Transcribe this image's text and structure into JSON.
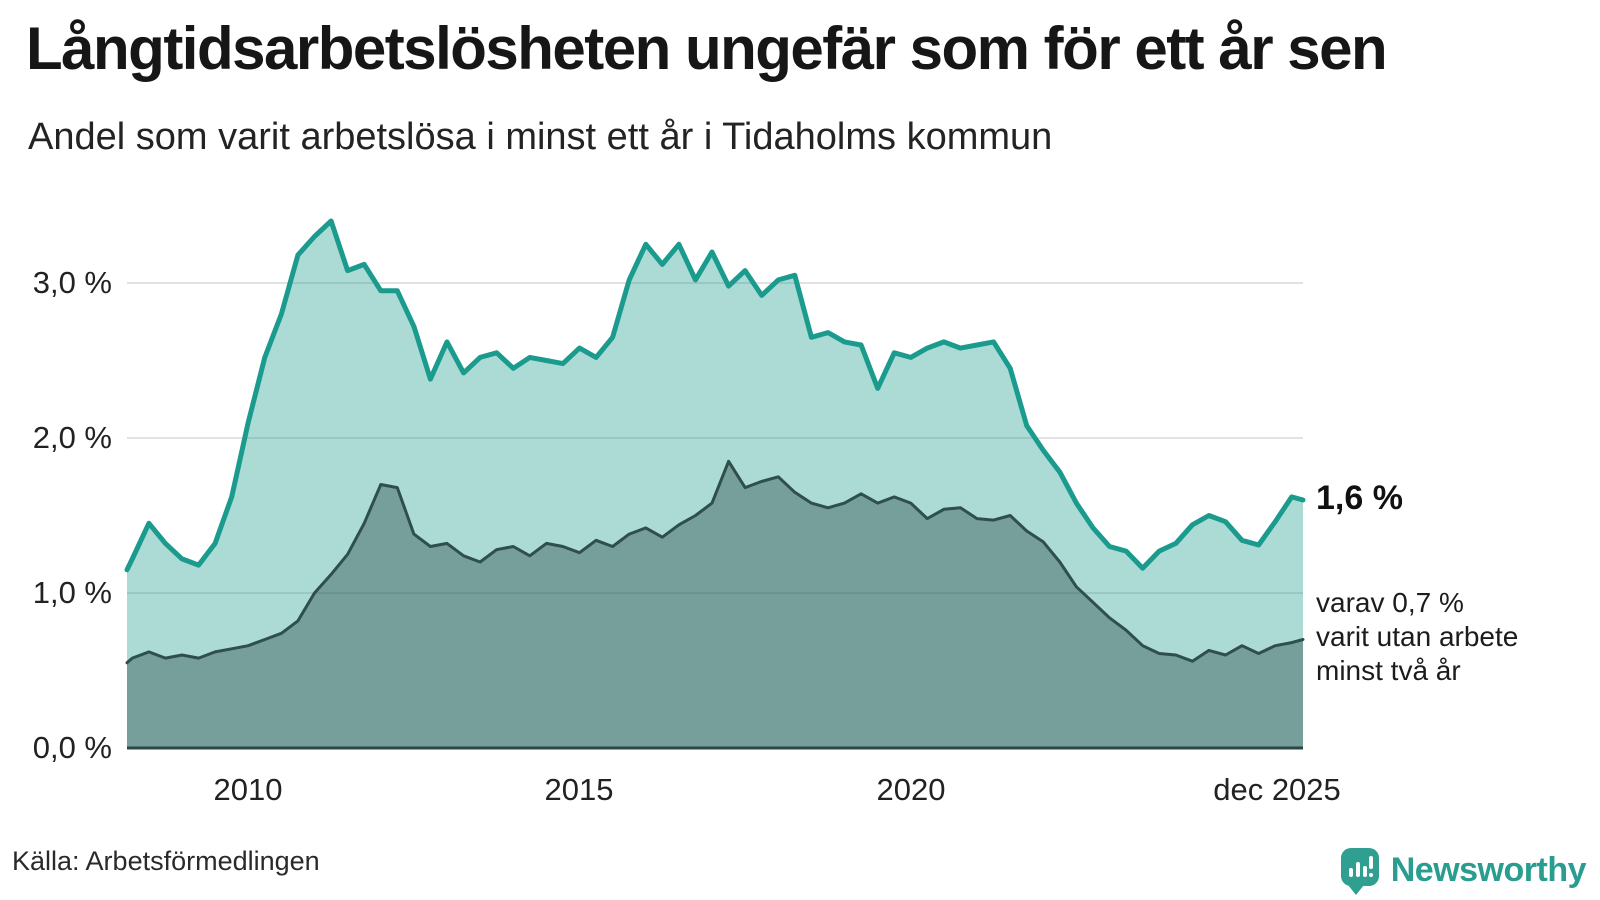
{
  "header": {
    "title": "Långtidsarbetslösheten ungefär som för ett år sen",
    "subtitle": "Andel som varit arbetslösa i minst ett år i Tidaholms kommun"
  },
  "chart_data": {
    "type": "area",
    "title": "Långtidsarbetslösheten ungefär som för ett år sen",
    "subtitle": "Andel som varit arbetslösa i minst ett år i Tidaholms kommun",
    "unit": "%",
    "grid": true,
    "legend_position": "none",
    "ylim": [
      0,
      3.45
    ],
    "xlim": [
      2008.17,
      2025.92
    ],
    "yticks": [
      {
        "value": 3.0,
        "label": "3,0 %"
      },
      {
        "value": 2.0,
        "label": "2,0 %"
      },
      {
        "value": 1.0,
        "label": "1,0 %"
      },
      {
        "value": 0.0,
        "label": "0,0 %"
      }
    ],
    "xticks": [
      {
        "year": 2010,
        "label": "2010"
      },
      {
        "year": 2015,
        "label": "2015"
      },
      {
        "year": 2020,
        "label": "2020"
      },
      {
        "year": 2025.92,
        "label": "dec 2025"
      }
    ],
    "colors": {
      "line_one_year": "#1a9b8d",
      "fill_one_year": "rgba(26,155,141,0.36)",
      "line_two_years": "#2e4f4a",
      "fill_two_years": "rgba(46,79,74,0.43)",
      "grid": "#e2e2e2",
      "axis": "#2b4743"
    },
    "x": [
      2008.17,
      2008.25,
      2008.5,
      2008.75,
      2009,
      2009.25,
      2009.5,
      2009.75,
      2010,
      2010.25,
      2010.5,
      2010.75,
      2011,
      2011.25,
      2011.5,
      2011.75,
      2012,
      2012.25,
      2012.5,
      2012.75,
      2013,
      2013.25,
      2013.5,
      2013.75,
      2014,
      2014.25,
      2014.5,
      2014.75,
      2015,
      2015.25,
      2015.5,
      2015.75,
      2016,
      2016.25,
      2016.5,
      2016.75,
      2017,
      2017.25,
      2017.5,
      2017.75,
      2018,
      2018.25,
      2018.5,
      2018.75,
      2019,
      2019.25,
      2019.5,
      2019.75,
      2020,
      2020.25,
      2020.5,
      2020.75,
      2021,
      2021.25,
      2021.5,
      2021.75,
      2022,
      2022.25,
      2022.5,
      2022.75,
      2023,
      2023.25,
      2023.5,
      2023.75,
      2024,
      2024.25,
      2024.5,
      2024.75,
      2025,
      2025.25,
      2025.5,
      2025.75,
      2025.92
    ],
    "series": [
      {
        "name": "Arbetslösa minst ett år",
        "end_value_pct": 1.6,
        "values": [
          1.15,
          1.22,
          1.45,
          1.32,
          1.22,
          1.18,
          1.32,
          1.62,
          2.1,
          2.52,
          2.8,
          3.18,
          3.3,
          3.4,
          3.08,
          3.12,
          2.95,
          2.95,
          2.72,
          2.38,
          2.62,
          2.42,
          2.52,
          2.55,
          2.45,
          2.52,
          2.5,
          2.48,
          2.58,
          2.52,
          2.65,
          3.02,
          3.25,
          3.12,
          3.25,
          3.02,
          3.2,
          2.98,
          3.08,
          2.92,
          3.02,
          3.05,
          2.65,
          2.68,
          2.62,
          2.6,
          2.32,
          2.55,
          2.52,
          2.58,
          2.62,
          2.58,
          2.6,
          2.62,
          2.45,
          2.08,
          1.92,
          1.78,
          1.58,
          1.42,
          1.3,
          1.27,
          1.16,
          1.27,
          1.32,
          1.44,
          1.5,
          1.46,
          1.34,
          1.31,
          1.46,
          1.62,
          1.6
        ]
      },
      {
        "name": "Varav utan arbete minst två år",
        "end_value_pct": 0.7,
        "values": [
          0.55,
          0.58,
          0.62,
          0.58,
          0.6,
          0.58,
          0.62,
          0.64,
          0.66,
          0.7,
          0.74,
          0.82,
          1.0,
          1.12,
          1.25,
          1.45,
          1.7,
          1.68,
          1.38,
          1.3,
          1.32,
          1.24,
          1.2,
          1.28,
          1.3,
          1.24,
          1.32,
          1.3,
          1.26,
          1.34,
          1.3,
          1.38,
          1.42,
          1.36,
          1.44,
          1.5,
          1.58,
          1.85,
          1.68,
          1.72,
          1.75,
          1.65,
          1.58,
          1.55,
          1.58,
          1.64,
          1.58,
          1.62,
          1.58,
          1.48,
          1.54,
          1.55,
          1.48,
          1.47,
          1.5,
          1.4,
          1.33,
          1.2,
          1.04,
          0.94,
          0.84,
          0.76,
          0.66,
          0.61,
          0.6,
          0.56,
          0.63,
          0.6,
          0.66,
          0.61,
          0.66,
          0.68,
          0.7
        ]
      }
    ],
    "annotations": {
      "end_value_label": "1,6 %",
      "note_line1": "varav 0,7 %",
      "note_line2": "varit utan arbete",
      "note_line3": "minst två år"
    }
  },
  "footer": {
    "source": "Källa: Arbetsförmedlingen",
    "logo_text": "Newsworthy"
  }
}
